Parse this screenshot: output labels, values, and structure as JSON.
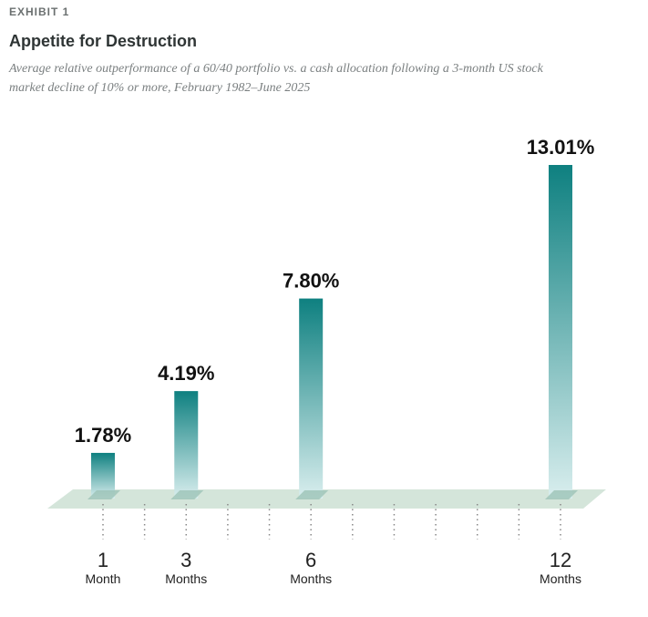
{
  "exhibit": "EXHIBIT 1",
  "chart_data": {
    "type": "bar",
    "title": "Appetite for Destruction",
    "subtitle": [
      "Average relative outperformance of a 60/40 portfolio vs. a cash allocation following a 3-month US stock",
      "market decline of 10% or more, February 1982–June 2025"
    ],
    "x": [
      1,
      3,
      6,
      12
    ],
    "x_units": [
      "Month",
      "Months",
      "Months",
      "Months"
    ],
    "values": [
      1.78,
      4.19,
      7.8,
      13.01
    ],
    "value_labels": [
      "1.78%",
      "4.19%",
      "7.80%",
      "13.01%"
    ],
    "xticks": [
      1,
      2,
      3,
      4,
      5,
      6,
      7,
      8,
      9,
      10,
      11,
      12
    ],
    "color": "#0e8080"
  }
}
